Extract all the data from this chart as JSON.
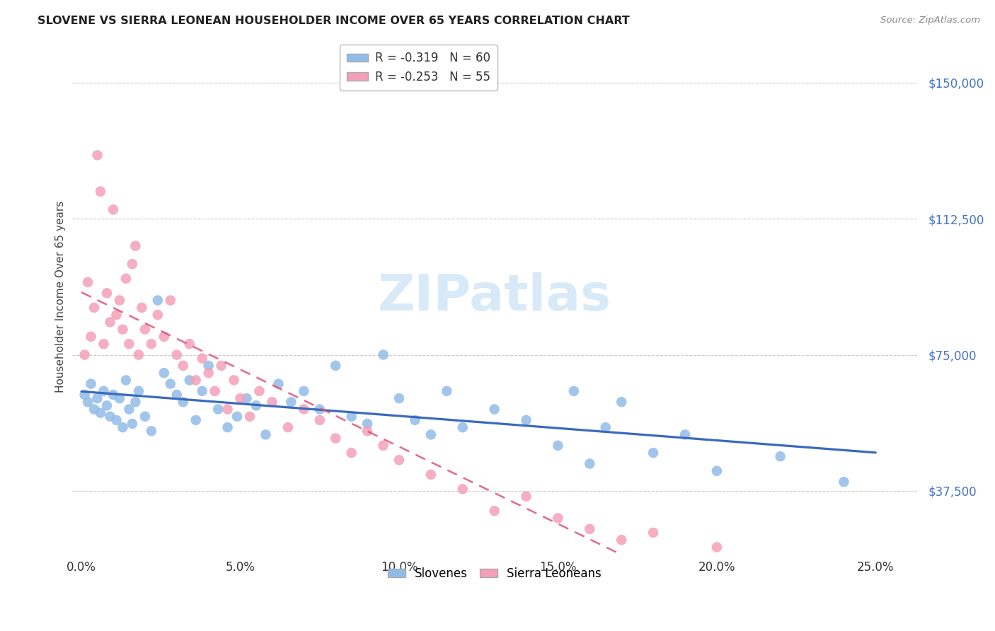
{
  "title": "SLOVENE VS SIERRA LEONEAN HOUSEHOLDER INCOME OVER 65 YEARS CORRELATION CHART",
  "source": "Source: ZipAtlas.com",
  "ylabel": "Householder Income Over 65 years",
  "xlabel_ticks": [
    "0.0%",
    "5.0%",
    "10.0%",
    "15.0%",
    "20.0%",
    "25.0%"
  ],
  "xlabel_vals": [
    0.0,
    0.05,
    0.1,
    0.15,
    0.2,
    0.25
  ],
  "ytick_labels": [
    "$37,500",
    "$75,000",
    "$112,500",
    "$150,000"
  ],
  "ytick_vals": [
    37500,
    75000,
    112500,
    150000
  ],
  "ylim": [
    20000,
    162000
  ],
  "xlim": [
    -0.003,
    0.263
  ],
  "slovene_R": "-0.319",
  "slovene_N": "60",
  "sierra_R": "-0.253",
  "sierra_N": "55",
  "slovene_color": "#92bce8",
  "sierra_color": "#f4a0b8",
  "slovene_line_color": "#3a6abf",
  "sierra_line_color": "#e05070",
  "watermark_color": "#d8eaf8",
  "background_color": "#ffffff",
  "grid_color": "#cccccc",
  "slovene_x": [
    0.001,
    0.002,
    0.003,
    0.004,
    0.005,
    0.006,
    0.007,
    0.008,
    0.009,
    0.01,
    0.011,
    0.012,
    0.013,
    0.014,
    0.015,
    0.016,
    0.017,
    0.018,
    0.02,
    0.022,
    0.024,
    0.026,
    0.028,
    0.03,
    0.032,
    0.034,
    0.036,
    0.038,
    0.04,
    0.043,
    0.046,
    0.049,
    0.052,
    0.055,
    0.058,
    0.062,
    0.066,
    0.07,
    0.075,
    0.08,
    0.085,
    0.09,
    0.095,
    0.1,
    0.105,
    0.11,
    0.115,
    0.12,
    0.13,
    0.14,
    0.15,
    0.155,
    0.16,
    0.165,
    0.17,
    0.18,
    0.19,
    0.2,
    0.22,
    0.24
  ],
  "slovene_y": [
    64000,
    62000,
    67000,
    60000,
    63000,
    59000,
    65000,
    61000,
    58000,
    64000,
    57000,
    63000,
    55000,
    68000,
    60000,
    56000,
    62000,
    65000,
    58000,
    54000,
    90000,
    70000,
    67000,
    64000,
    62000,
    68000,
    57000,
    65000,
    72000,
    60000,
    55000,
    58000,
    63000,
    61000,
    53000,
    67000,
    62000,
    65000,
    60000,
    72000,
    58000,
    56000,
    75000,
    63000,
    57000,
    53000,
    65000,
    55000,
    60000,
    57000,
    50000,
    65000,
    45000,
    55000,
    62000,
    48000,
    53000,
    43000,
    47000,
    40000
  ],
  "sierra_x": [
    0.001,
    0.002,
    0.003,
    0.004,
    0.005,
    0.006,
    0.007,
    0.008,
    0.009,
    0.01,
    0.011,
    0.012,
    0.013,
    0.014,
    0.015,
    0.016,
    0.017,
    0.018,
    0.019,
    0.02,
    0.022,
    0.024,
    0.026,
    0.028,
    0.03,
    0.032,
    0.034,
    0.036,
    0.038,
    0.04,
    0.042,
    0.044,
    0.046,
    0.048,
    0.05,
    0.053,
    0.056,
    0.06,
    0.065,
    0.07,
    0.075,
    0.08,
    0.085,
    0.09,
    0.095,
    0.1,
    0.11,
    0.12,
    0.13,
    0.14,
    0.15,
    0.16,
    0.17,
    0.18,
    0.2
  ],
  "sierra_y": [
    75000,
    95000,
    80000,
    88000,
    130000,
    120000,
    78000,
    92000,
    84000,
    115000,
    86000,
    90000,
    82000,
    96000,
    78000,
    100000,
    105000,
    75000,
    88000,
    82000,
    78000,
    86000,
    80000,
    90000,
    75000,
    72000,
    78000,
    68000,
    74000,
    70000,
    65000,
    72000,
    60000,
    68000,
    63000,
    58000,
    65000,
    62000,
    55000,
    60000,
    57000,
    52000,
    48000,
    54000,
    50000,
    46000,
    42000,
    38000,
    32000,
    36000,
    30000,
    27000,
    24000,
    26000,
    22000
  ],
  "slovene_trendline_x": [
    0.0,
    0.25
  ],
  "slovene_trendline_y": [
    65000,
    37500
  ],
  "sierra_trendline_x": [
    0.0,
    0.25
  ],
  "sierra_trendline_y": [
    80000,
    20000
  ]
}
